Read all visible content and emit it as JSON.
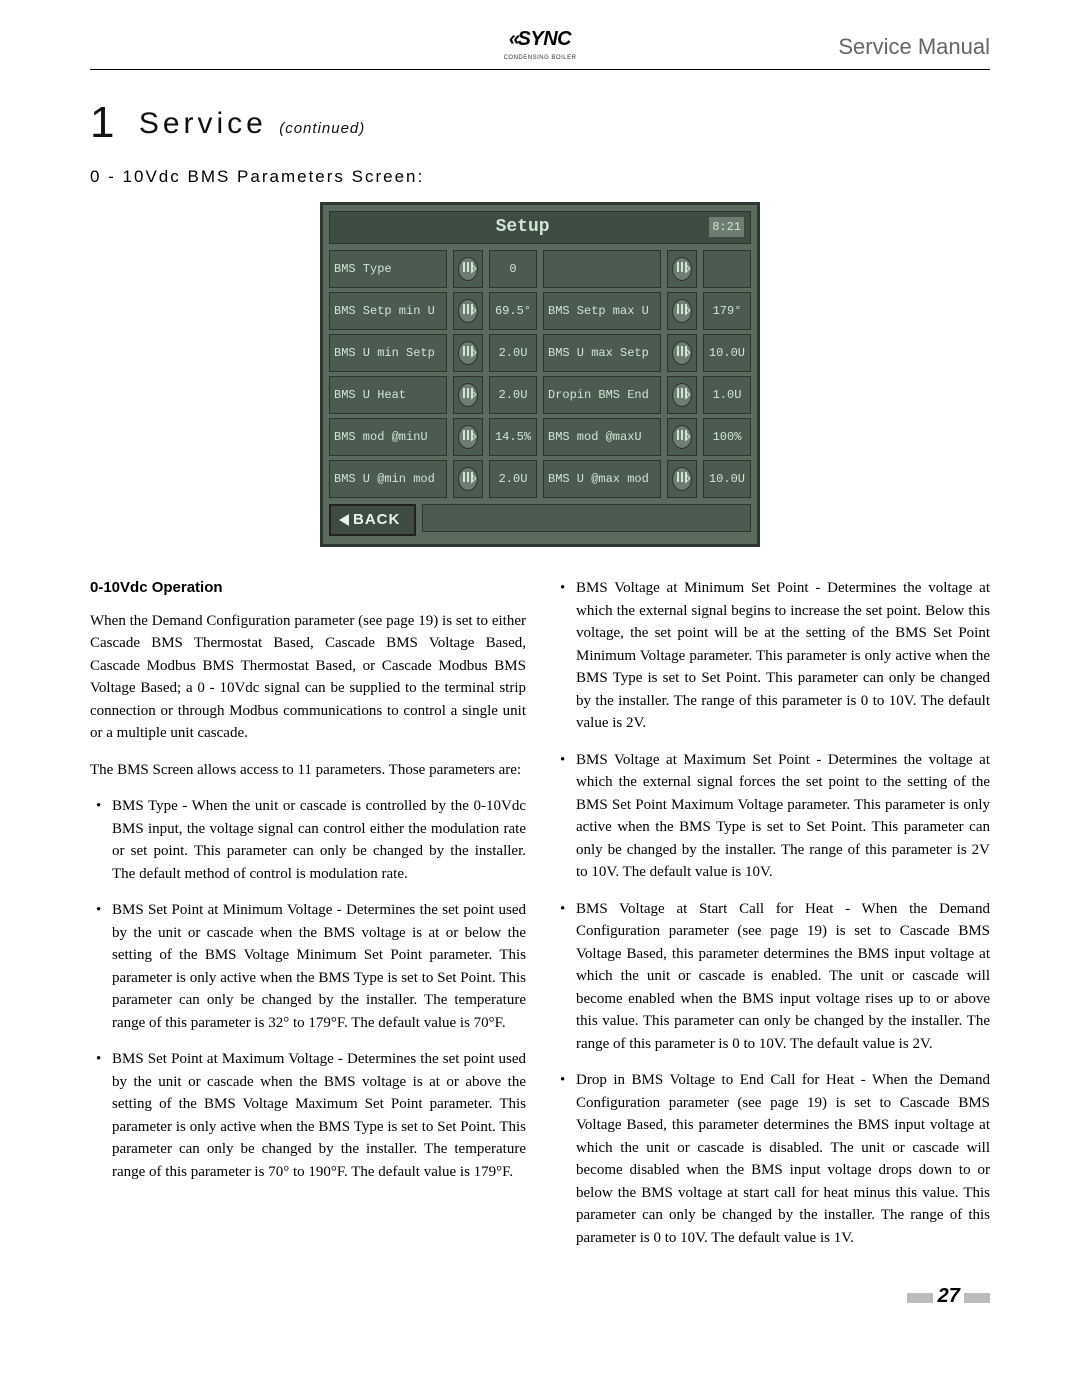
{
  "header": {
    "logo_text": "SYNC",
    "logo_sub": "CONDENSING BOILER",
    "manual_title": "Service Manual"
  },
  "section": {
    "number": "1",
    "title": "Service",
    "continued": "(continued)",
    "subhead": "0 - 10Vdc BMS Parameters Screen:"
  },
  "screen": {
    "title": "Setup",
    "time": "8:21",
    "rows": [
      {
        "l": "BMS Type",
        "lv": "0",
        "r": "",
        "rv": ""
      },
      {
        "l": "BMS Setp min U",
        "lv": "69.5°",
        "r": "BMS Setp max U",
        "rv": "179°"
      },
      {
        "l": "BMS U min Setp",
        "lv": "2.0U",
        "r": "BMS U max Setp",
        "rv": "10.0U"
      },
      {
        "l": "BMS U Heat",
        "lv": "2.0U",
        "r": "Dropin BMS End",
        "rv": "1.0U"
      },
      {
        "l": "BMS mod @minU",
        "lv": "14.5%",
        "r": "BMS mod @maxU",
        "rv": "100%"
      },
      {
        "l": "BMS U @min mod",
        "lv": "2.0U",
        "r": "BMS U @max mod",
        "rv": "10.0U"
      }
    ],
    "back": "BACK"
  },
  "body": {
    "op_title": "0-10Vdc Operation",
    "p1": "When the Demand Configuration parameter (see page 19) is set to either Cascade BMS Thermostat Based, Cascade BMS Voltage Based, Cascade Modbus BMS Thermostat Based, or Cascade Modbus BMS Voltage Based; a 0 - 10Vdc signal can be supplied to the terminal strip connection or through Modbus communications to control a single unit or a multiple unit cascade.",
    "p2": "The BMS Screen allows access to 11 parameters.  Those parameters are:",
    "left_items": [
      "BMS Type - When the unit or cascade is controlled by the 0-10Vdc BMS input, the voltage signal can control either the modulation rate or set point.  This parameter can only be changed by the installer.  The default method of control is modulation rate.",
      "BMS Set Point at Minimum Voltage - Determines the set point used by the unit or cascade when the BMS voltage is at or below the setting of the BMS Voltage Minimum Set Point parameter.  This parameter is only active when the BMS Type is set to Set Point.  This parameter can only be changed by the installer.  The temperature range of this parameter is 32° to 179°F.  The default value is 70°F.",
      "BMS Set Point at Maximum Voltage - Determines the set point used by the unit or cascade when the BMS voltage is at or above the setting of the BMS Voltage Maximum Set Point parameter.  This parameter is only active when the BMS Type is set to Set Point.  This parameter can only be changed by the installer.  The temperature range of this parameter is 70° to 190°F.  The default value is 179°F."
    ],
    "right_items": [
      "BMS Voltage at Minimum Set Point - Determines the voltage at which the external signal begins to increase the set point.  Below this voltage, the set point will be at the setting of the BMS Set Point Minimum Voltage parameter.  This parameter is only active when the BMS Type is set to Set Point.  This parameter can only be changed by the installer.  The range of this parameter is 0 to 10V.  The default value is 2V.",
      "BMS Voltage at Maximum Set Point - Determines the voltage at which the external signal forces the set point to the setting of the BMS Set Point Maximum Voltage parameter.  This parameter is only active when the BMS Type is set to Set Point.  This parameter can only be changed by the installer.  The range of this parameter is 2V to 10V.  The default value is 10V.",
      "BMS Voltage at Start Call for Heat - When the Demand Configuration parameter (see page 19) is set to Cascade BMS Voltage Based, this parameter determines the BMS input voltage at which the unit or cascade is enabled.  The unit or cascade will become enabled when the BMS input voltage rises up to or above this value.  This parameter can only be changed by the installer.  The range of this parameter is 0 to 10V.  The default value is 2V.",
      "Drop in BMS Voltage to End Call for Heat - When the Demand Configuration parameter (see page 19) is set to Cascade BMS Voltage Based, this parameter determines the BMS input voltage at which the unit or cascade is disabled.  The unit or cascade will become disabled when the BMS input voltage drops down to or below the BMS voltage at start call for heat minus this value.  This parameter can only be changed by the installer.  The range of this parameter is 0 to 10V.  The default value is 1V."
    ]
  },
  "page_number": "27"
}
